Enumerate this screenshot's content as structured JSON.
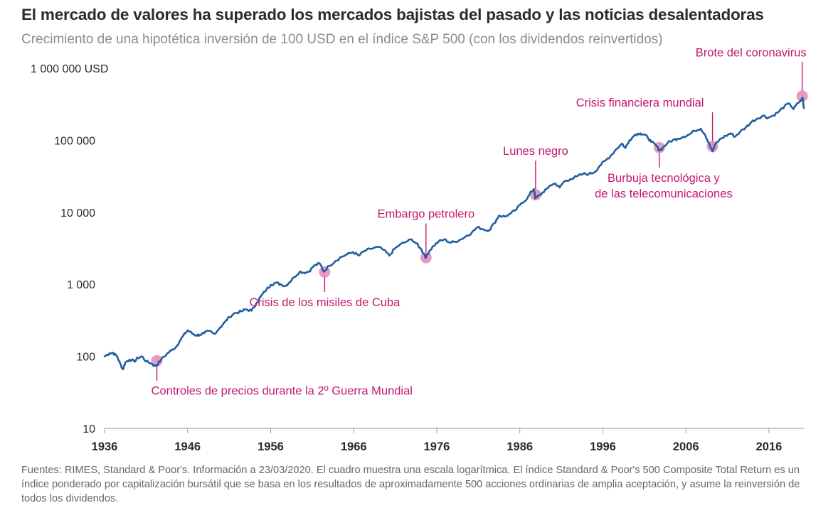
{
  "chart_data": {
    "type": "line",
    "scale": "log",
    "title": "El mercado de valores ha superado los mercados bajistas del pasado y las noticias desalentadoras",
    "subtitle": "Crecimiento de una hipotética inversión de 100 USD en el índice S&P 500 (con los dividendos reinvertidos)",
    "xlabel": "",
    "ylabel": "",
    "xlim": [
      1936,
      2020.2
    ],
    "ylim": [
      10,
      1000000
    ],
    "y_ticks": [
      {
        "value": 1000000,
        "label": "1 000 000 USD"
      },
      {
        "value": 100000,
        "label": "100 000"
      },
      {
        "value": 10000,
        "label": "10 000"
      },
      {
        "value": 1000,
        "label": "1 000"
      },
      {
        "value": 100,
        "label": "100"
      },
      {
        "value": 10,
        "label": "10"
      }
    ],
    "x_ticks": [
      {
        "value": 1936,
        "label": "1936"
      },
      {
        "value": 1946,
        "label": "1946"
      },
      {
        "value": 1956,
        "label": "1956"
      },
      {
        "value": 1966,
        "label": "1966"
      },
      {
        "value": 1976,
        "label": "1976"
      },
      {
        "value": 1986,
        "label": "1986"
      },
      {
        "value": 1996,
        "label": "1996"
      },
      {
        "value": 2006,
        "label": "2006"
      },
      {
        "value": 2016,
        "label": "2016"
      }
    ],
    "series": [
      {
        "name": "S&P 500 Composite Total Return",
        "color": "#1f5fa0",
        "points": [
          [
            1936.0,
            100
          ],
          [
            1936.6,
            110
          ],
          [
            1937.0,
            112
          ],
          [
            1937.5,
            100
          ],
          [
            1937.9,
            78
          ],
          [
            1938.2,
            66
          ],
          [
            1938.5,
            82
          ],
          [
            1939.0,
            90
          ],
          [
            1939.6,
            85
          ],
          [
            1940.0,
            95
          ],
          [
            1940.5,
            100
          ],
          [
            1941.0,
            85
          ],
          [
            1941.6,
            80
          ],
          [
            1942.0,
            74
          ],
          [
            1942.3,
            75
          ],
          [
            1942.8,
            90
          ],
          [
            1943.5,
            108
          ],
          [
            1944.0,
            120
          ],
          [
            1944.6,
            135
          ],
          [
            1945.0,
            160
          ],
          [
            1945.5,
            195
          ],
          [
            1946.0,
            230
          ],
          [
            1946.5,
            210
          ],
          [
            1947.0,
            195
          ],
          [
            1947.5,
            200
          ],
          [
            1948.0,
            210
          ],
          [
            1948.6,
            225
          ],
          [
            1949.2,
            205
          ],
          [
            1949.9,
            250
          ],
          [
            1950.5,
            300
          ],
          [
            1951.0,
            350
          ],
          [
            1951.7,
            400
          ],
          [
            1952.5,
            420
          ],
          [
            1953.0,
            450
          ],
          [
            1953.7,
            430
          ],
          [
            1954.3,
            550
          ],
          [
            1954.9,
            700
          ],
          [
            1955.5,
            850
          ],
          [
            1956.0,
            980
          ],
          [
            1956.6,
            1050
          ],
          [
            1957.2,
            1000
          ],
          [
            1957.8,
            950
          ],
          [
            1958.2,
            1050
          ],
          [
            1958.8,
            1250
          ],
          [
            1959.5,
            1500
          ],
          [
            1960.0,
            1450
          ],
          [
            1960.6,
            1500
          ],
          [
            1961.2,
            1800
          ],
          [
            1961.9,
            1950
          ],
          [
            1962.4,
            1500
          ],
          [
            1963.0,
            1800
          ],
          [
            1963.8,
            2100
          ],
          [
            1964.5,
            2400
          ],
          [
            1965.2,
            2600
          ],
          [
            1965.9,
            2800
          ],
          [
            1966.6,
            2500
          ],
          [
            1967.3,
            2900
          ],
          [
            1968.0,
            3100
          ],
          [
            1968.9,
            3300
          ],
          [
            1969.6,
            3000
          ],
          [
            1970.3,
            2500
          ],
          [
            1970.9,
            3100
          ],
          [
            1971.5,
            3500
          ],
          [
            1972.3,
            3900
          ],
          [
            1973.0,
            4200
          ],
          [
            1973.5,
            3700
          ],
          [
            1974.0,
            3200
          ],
          [
            1974.5,
            2600
          ],
          [
            1974.7,
            2350
          ],
          [
            1975.1,
            2900
          ],
          [
            1975.6,
            3400
          ],
          [
            1976.2,
            3900
          ],
          [
            1976.9,
            4200
          ],
          [
            1977.6,
            3800
          ],
          [
            1978.2,
            3900
          ],
          [
            1978.9,
            4200
          ],
          [
            1979.6,
            4700
          ],
          [
            1980.2,
            5200
          ],
          [
            1980.9,
            6200
          ],
          [
            1981.6,
            5800
          ],
          [
            1982.3,
            5600
          ],
          [
            1982.9,
            7000
          ],
          [
            1983.5,
            9000
          ],
          [
            1984.2,
            8700
          ],
          [
            1984.9,
            9600
          ],
          [
            1985.6,
            11000
          ],
          [
            1986.2,
            13500
          ],
          [
            1986.9,
            15500
          ],
          [
            1987.4,
            19500
          ],
          [
            1987.7,
            21000
          ],
          [
            1987.85,
            15500
          ],
          [
            1988.2,
            17000
          ],
          [
            1988.9,
            19000
          ],
          [
            1989.6,
            23500
          ],
          [
            1990.3,
            25000
          ],
          [
            1990.8,
            22000
          ],
          [
            1991.3,
            26500
          ],
          [
            1992.1,
            29000
          ],
          [
            1992.9,
            31500
          ],
          [
            1993.6,
            34000
          ],
          [
            1994.3,
            34000
          ],
          [
            1995.0,
            36000
          ],
          [
            1995.6,
            44000
          ],
          [
            1996.3,
            52000
          ],
          [
            1996.9,
            60000
          ],
          [
            1997.6,
            75000
          ],
          [
            1998.3,
            90000
          ],
          [
            1998.7,
            78000
          ],
          [
            1999.2,
            100000
          ],
          [
            1999.9,
            120000
          ],
          [
            2000.5,
            125000
          ],
          [
            2000.9,
            120000
          ],
          [
            2001.4,
            110000
          ],
          [
            2001.8,
            95000
          ],
          [
            2002.4,
            85000
          ],
          [
            2002.8,
            72000
          ],
          [
            2003.2,
            78000
          ],
          [
            2003.8,
            92000
          ],
          [
            2004.4,
            100000
          ],
          [
            2005.0,
            105000
          ],
          [
            2005.7,
            112000
          ],
          [
            2006.4,
            120000
          ],
          [
            2007.0,
            135000
          ],
          [
            2007.8,
            145000
          ],
          [
            2008.3,
            120000
          ],
          [
            2008.8,
            90000
          ],
          [
            2009.2,
            70000
          ],
          [
            2009.6,
            90000
          ],
          [
            2010.2,
            105000
          ],
          [
            2010.8,
            115000
          ],
          [
            2011.4,
            125000
          ],
          [
            2011.9,
            112000
          ],
          [
            2012.5,
            130000
          ],
          [
            2013.2,
            150000
          ],
          [
            2013.9,
            180000
          ],
          [
            2014.6,
            200000
          ],
          [
            2015.3,
            220000
          ],
          [
            2015.9,
            205000
          ],
          [
            2016.5,
            220000
          ],
          [
            2017.2,
            250000
          ],
          [
            2017.9,
            300000
          ],
          [
            2018.5,
            320000
          ],
          [
            2018.95,
            270000
          ],
          [
            2019.5,
            330000
          ],
          [
            2019.9,
            360000
          ],
          [
            2020.05,
            390000
          ],
          [
            2020.12,
            330000
          ],
          [
            2020.2,
            280000
          ]
        ]
      }
    ],
    "annotations": [
      {
        "label": "Controles de precios durante la 2º Guerra Mundial",
        "x": 1942.3,
        "y": 87,
        "position": "below",
        "lines": [
          "Controles de precios durante la 2º Guerra Mundial"
        ]
      },
      {
        "label": "Crisis de los misiles de Cuba",
        "x": 1962.5,
        "y": 1480,
        "position": "below",
        "lines": [
          "Crisis de los misiles de Cuba"
        ]
      },
      {
        "label": "Embargo petrolero",
        "x": 1974.7,
        "y": 2350,
        "position": "above",
        "lines": [
          "Embargo petrolero"
        ]
      },
      {
        "label": "Lunes negro",
        "x": 1987.9,
        "y": 17500,
        "position": "above",
        "lines": [
          "Lunes negro"
        ]
      },
      {
        "label": "Burbuja tecnológica y de las telecomunicaciones",
        "x": 2002.8,
        "y": 79000,
        "position": "below",
        "lines": [
          "Burbuja tecnológica y",
          "de las telecomunicaciones"
        ]
      },
      {
        "label": "Crisis financiera mundial",
        "x": 2009.2,
        "y": 82000,
        "position": "above",
        "lines": [
          "Crisis financiera mundial"
        ]
      },
      {
        "label": "Brote del coronavirus",
        "x": 2020.0,
        "y": 410000,
        "position": "above",
        "lines": [
          "Brote del coronavirus"
        ]
      }
    ],
    "annotation_color": "#c2186b",
    "marker_color": "#e58fc0",
    "line_color": "#1f5fa0"
  },
  "footer": {
    "text": "Fuentes: RIMES, Standard & Poor's. Información a 23/03/2020. El cuadro muestra una escala logarítmica. El índice Standard & Poor's 500 Composite Total Return es un índice ponderado por capitalización bursátil que se basa en los resultados de aproximadamente 500 acciones ordinarias de amplia aceptación, y asume la reinversión de todos los dividendos."
  }
}
